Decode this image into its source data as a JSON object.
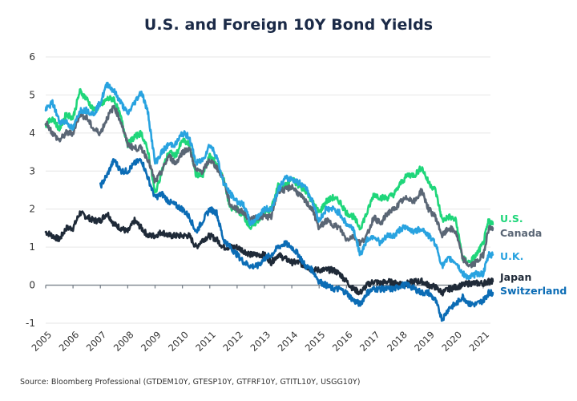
{
  "chart_data": {
    "type": "line",
    "title": "U.S. and Foreign 10Y Bond Yields",
    "xlabel": "",
    "ylabel": "",
    "ylim": [
      -1,
      6
    ],
    "xlim": [
      2005,
      2021.5
    ],
    "yticks": [
      "6",
      "5",
      "4",
      "3",
      "2",
      "1",
      "0",
      "-1"
    ],
    "ytick_values": [
      6,
      5,
      4,
      3,
      2,
      1,
      0,
      -1
    ],
    "xticks": [
      "2005",
      "2006",
      "2007",
      "2008",
      "2009",
      "2010",
      "2011",
      "2012",
      "2013",
      "2014",
      "2015",
      "2016",
      "2017",
      "2018",
      "2019",
      "2020",
      "2021"
    ],
    "xtick_values": [
      2005,
      2006,
      2007,
      2008,
      2009,
      2010,
      2011,
      2012,
      2013,
      2014,
      2015,
      2016,
      2017,
      2018,
      2019,
      2020,
      2021
    ],
    "grid": true,
    "legend_placement": "right",
    "series": [
      {
        "name": "U.S.",
        "color": "#1fd67a",
        "x": [
          2005.0,
          2005.25,
          2005.5,
          2005.75,
          2006.0,
          2006.25,
          2006.5,
          2006.75,
          2007.0,
          2007.25,
          2007.5,
          2007.75,
          2008.0,
          2008.25,
          2008.5,
          2008.75,
          2009.0,
          2009.25,
          2009.5,
          2009.75,
          2010.0,
          2010.25,
          2010.5,
          2010.75,
          2011.0,
          2011.25,
          2011.5,
          2011.75,
          2012.0,
          2012.25,
          2012.5,
          2012.75,
          2013.0,
          2013.25,
          2013.5,
          2013.75,
          2014.0,
          2014.25,
          2014.5,
          2014.75,
          2015.0,
          2015.25,
          2015.5,
          2015.75,
          2016.0,
          2016.25,
          2016.5,
          2016.75,
          2017.0,
          2017.25,
          2017.5,
          2017.75,
          2018.0,
          2018.25,
          2018.5,
          2018.75,
          2019.0,
          2019.25,
          2019.5,
          2019.75,
          2020.0,
          2020.25,
          2020.5,
          2020.75,
          2021.0,
          2021.2,
          2021.35
        ],
        "values": [
          4.2,
          4.4,
          4.1,
          4.5,
          4.4,
          5.1,
          4.9,
          4.6,
          4.7,
          4.9,
          4.9,
          4.4,
          3.7,
          3.9,
          4.0,
          3.5,
          2.4,
          3.0,
          3.5,
          3.4,
          3.8,
          3.7,
          2.9,
          2.9,
          3.4,
          3.2,
          2.8,
          2.0,
          2.0,
          1.8,
          1.5,
          1.7,
          1.9,
          2.0,
          2.6,
          2.6,
          2.8,
          2.6,
          2.5,
          2.2,
          1.9,
          2.2,
          2.3,
          2.2,
          1.9,
          1.8,
          1.5,
          1.9,
          2.4,
          2.3,
          2.3,
          2.4,
          2.7,
          2.9,
          2.9,
          3.1,
          2.7,
          2.5,
          1.7,
          1.8,
          1.7,
          0.7,
          0.6,
          0.8,
          1.1,
          1.7,
          1.6
        ]
      },
      {
        "name": "Canada",
        "color": "#5a6675",
        "x": [
          2005.0,
          2005.25,
          2005.5,
          2005.75,
          2006.0,
          2006.25,
          2006.5,
          2006.75,
          2007.0,
          2007.25,
          2007.5,
          2007.75,
          2008.0,
          2008.25,
          2008.5,
          2008.75,
          2009.0,
          2009.25,
          2009.5,
          2009.75,
          2010.0,
          2010.25,
          2010.5,
          2010.75,
          2011.0,
          2011.25,
          2011.5,
          2011.75,
          2012.0,
          2012.25,
          2012.5,
          2012.75,
          2013.0,
          2013.25,
          2013.5,
          2013.75,
          2014.0,
          2014.25,
          2014.5,
          2014.75,
          2015.0,
          2015.25,
          2015.5,
          2015.75,
          2016.0,
          2016.25,
          2016.5,
          2016.75,
          2017.0,
          2017.25,
          2017.5,
          2017.75,
          2018.0,
          2018.25,
          2018.5,
          2018.75,
          2019.0,
          2019.25,
          2019.5,
          2019.75,
          2020.0,
          2020.25,
          2020.5,
          2020.75,
          2021.0,
          2021.2,
          2021.35
        ],
        "values": [
          4.3,
          4.0,
          3.8,
          4.0,
          4.0,
          4.5,
          4.4,
          4.1,
          4.0,
          4.4,
          4.7,
          4.3,
          3.7,
          3.6,
          3.6,
          3.3,
          2.7,
          3.0,
          3.4,
          3.2,
          3.5,
          3.6,
          3.0,
          3.0,
          3.3,
          3.1,
          2.8,
          2.1,
          2.0,
          1.9,
          1.7,
          1.8,
          1.8,
          1.8,
          2.5,
          2.5,
          2.6,
          2.4,
          2.2,
          2.0,
          1.5,
          1.7,
          1.6,
          1.5,
          1.2,
          1.3,
          1.1,
          1.3,
          1.8,
          1.6,
          1.9,
          2.0,
          2.2,
          2.3,
          2.2,
          2.5,
          2.0,
          1.8,
          1.3,
          1.5,
          1.4,
          0.7,
          0.5,
          0.6,
          0.8,
          1.5,
          1.5
        ]
      },
      {
        "name": "U.K.",
        "color": "#29a3e0",
        "x": [
          2005.0,
          2005.25,
          2005.5,
          2005.75,
          2006.0,
          2006.25,
          2006.5,
          2006.75,
          2007.0,
          2007.25,
          2007.5,
          2007.75,
          2008.0,
          2008.25,
          2008.5,
          2008.75,
          2009.0,
          2009.25,
          2009.5,
          2009.75,
          2010.0,
          2010.25,
          2010.5,
          2010.75,
          2011.0,
          2011.25,
          2011.5,
          2011.75,
          2012.0,
          2012.25,
          2012.5,
          2012.75,
          2013.0,
          2013.25,
          2013.5,
          2013.75,
          2014.0,
          2014.25,
          2014.5,
          2014.75,
          2015.0,
          2015.25,
          2015.5,
          2015.75,
          2016.0,
          2016.25,
          2016.5,
          2016.75,
          2017.0,
          2017.25,
          2017.5,
          2017.75,
          2018.0,
          2018.25,
          2018.5,
          2018.75,
          2019.0,
          2019.25,
          2019.5,
          2019.75,
          2020.0,
          2020.25,
          2020.5,
          2020.75,
          2021.0,
          2021.2,
          2021.35
        ],
        "values": [
          4.6,
          4.8,
          4.3,
          4.3,
          4.1,
          4.6,
          4.6,
          4.5,
          4.8,
          5.3,
          5.1,
          4.8,
          4.5,
          4.8,
          5.1,
          4.5,
          3.2,
          3.5,
          3.7,
          3.7,
          4.0,
          3.9,
          3.2,
          3.3,
          3.7,
          3.4,
          2.7,
          2.4,
          2.2,
          2.1,
          1.6,
          1.8,
          2.0,
          2.0,
          2.5,
          2.8,
          2.8,
          2.7,
          2.6,
          2.2,
          1.7,
          2.0,
          2.0,
          1.9,
          1.6,
          1.5,
          0.8,
          1.2,
          1.3,
          1.1,
          1.3,
          1.3,
          1.5,
          1.5,
          1.4,
          1.5,
          1.3,
          1.1,
          0.5,
          0.7,
          0.6,
          0.3,
          0.2,
          0.3,
          0.3,
          0.8,
          0.8
        ]
      },
      {
        "name": "Japan",
        "color": "#1f2a38",
        "x": [
          2005.0,
          2005.25,
          2005.5,
          2005.75,
          2006.0,
          2006.25,
          2006.5,
          2006.75,
          2007.0,
          2007.25,
          2007.5,
          2007.75,
          2008.0,
          2008.25,
          2008.5,
          2008.75,
          2009.0,
          2009.25,
          2009.5,
          2009.75,
          2010.0,
          2010.25,
          2010.5,
          2010.75,
          2011.0,
          2011.25,
          2011.5,
          2011.75,
          2012.0,
          2012.25,
          2012.5,
          2012.75,
          2013.0,
          2013.25,
          2013.5,
          2013.75,
          2014.0,
          2014.25,
          2014.5,
          2014.75,
          2015.0,
          2015.25,
          2015.5,
          2015.75,
          2016.0,
          2016.25,
          2016.5,
          2016.75,
          2017.0,
          2017.25,
          2017.5,
          2017.75,
          2018.0,
          2018.25,
          2018.5,
          2018.75,
          2019.0,
          2019.25,
          2019.5,
          2019.75,
          2020.0,
          2020.25,
          2020.5,
          2020.75,
          2021.0,
          2021.2,
          2021.35
        ],
        "values": [
          1.4,
          1.3,
          1.2,
          1.5,
          1.5,
          1.9,
          1.8,
          1.7,
          1.7,
          1.9,
          1.6,
          1.5,
          1.4,
          1.7,
          1.5,
          1.3,
          1.3,
          1.4,
          1.3,
          1.3,
          1.3,
          1.3,
          1.0,
          1.2,
          1.3,
          1.2,
          1.0,
          1.0,
          1.0,
          0.9,
          0.8,
          0.8,
          0.8,
          0.6,
          0.8,
          0.7,
          0.6,
          0.6,
          0.5,
          0.4,
          0.4,
          0.4,
          0.4,
          0.3,
          0.1,
          -0.1,
          -0.2,
          0.0,
          0.1,
          0.05,
          0.1,
          0.05,
          0.05,
          0.05,
          0.1,
          0.1,
          0.0,
          -0.05,
          -0.2,
          -0.1,
          -0.05,
          0.0,
          0.05,
          0.05,
          0.05,
          0.1,
          0.1
        ]
      },
      {
        "name": "Switzerland",
        "color": "#0b6cb5",
        "x": [
          2007.0,
          2007.25,
          2007.5,
          2007.75,
          2008.0,
          2008.25,
          2008.5,
          2008.75,
          2009.0,
          2009.25,
          2009.5,
          2009.75,
          2010.0,
          2010.25,
          2010.5,
          2010.75,
          2011.0,
          2011.25,
          2011.5,
          2011.75,
          2012.0,
          2012.25,
          2012.5,
          2012.75,
          2013.0,
          2013.25,
          2013.5,
          2013.75,
          2014.0,
          2014.25,
          2014.5,
          2014.75,
          2015.0,
          2015.25,
          2015.5,
          2015.75,
          2016.0,
          2016.25,
          2016.5,
          2016.75,
          2017.0,
          2017.25,
          2017.5,
          2017.75,
          2018.0,
          2018.25,
          2018.5,
          2018.75,
          2019.0,
          2019.25,
          2019.5,
          2019.75,
          2020.0,
          2020.25,
          2020.5,
          2020.75,
          2021.0,
          2021.2,
          2021.35
        ],
        "values": [
          2.6,
          2.9,
          3.3,
          3.0,
          3.0,
          3.2,
          3.3,
          2.8,
          2.3,
          2.4,
          2.2,
          2.1,
          2.0,
          1.8,
          1.4,
          1.7,
          2.0,
          1.9,
          1.2,
          1.0,
          0.8,
          0.6,
          0.5,
          0.5,
          0.7,
          0.8,
          1.0,
          1.1,
          1.0,
          0.8,
          0.5,
          0.4,
          0.1,
          0.0,
          -0.1,
          -0.1,
          -0.2,
          -0.4,
          -0.5,
          -0.2,
          -0.1,
          -0.1,
          -0.1,
          -0.1,
          0.0,
          0.0,
          -0.1,
          -0.2,
          -0.2,
          -0.4,
          -0.9,
          -0.6,
          -0.5,
          -0.3,
          -0.5,
          -0.5,
          -0.4,
          -0.2,
          -0.2
        ]
      }
    ],
    "legend": [
      {
        "label": "U.S.",
        "color": "#1fd67a",
        "value": 1.75
      },
      {
        "label": "Canada",
        "color": "#5a6675",
        "value": 1.45
      },
      {
        "label": "U.K.",
        "color": "#29a3e0",
        "value": 0.85
      },
      {
        "label": "Japan",
        "color": "#1f2a38",
        "value": 0.3
      },
      {
        "label": "Switzerland",
        "color": "#0b6cb5",
        "value": 0.0
      }
    ]
  },
  "footer": {
    "source": "Source: Bloomberg Professional (GTDEM10Y, GTESP10Y, GTFRF10Y, GTITL10Y, USGG10Y)"
  }
}
